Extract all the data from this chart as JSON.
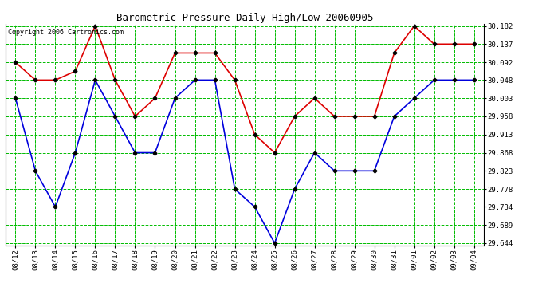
{
  "title": "Barometric Pressure Daily High/Low 20060905",
  "copyright": "Copyright 2006 Cartronics.com",
  "background_color": "#ffffff",
  "plot_background": "#ffffff",
  "grid_color": "#00bb00",
  "dates": [
    "08/12",
    "08/13",
    "08/14",
    "08/15",
    "08/16",
    "08/17",
    "08/18",
    "08/19",
    "08/20",
    "08/21",
    "08/22",
    "08/23",
    "08/24",
    "08/25",
    "08/26",
    "08/27",
    "08/28",
    "08/29",
    "08/30",
    "08/31",
    "09/01",
    "09/02",
    "09/03",
    "09/04"
  ],
  "high_values": [
    30.092,
    30.048,
    30.048,
    30.07,
    30.182,
    30.048,
    29.958,
    30.003,
    30.115,
    30.115,
    30.115,
    30.048,
    29.913,
    29.868,
    29.958,
    30.003,
    29.958,
    29.958,
    29.958,
    30.115,
    30.182,
    30.137,
    30.137,
    30.137
  ],
  "low_values": [
    30.003,
    29.823,
    29.734,
    29.868,
    30.048,
    29.958,
    29.868,
    29.868,
    30.003,
    30.048,
    30.048,
    29.778,
    29.734,
    29.644,
    29.778,
    29.868,
    29.823,
    29.823,
    29.823,
    29.958,
    30.003,
    30.048,
    30.048,
    30.048
  ],
  "high_color": "#dd0000",
  "low_color": "#0000dd",
  "marker_color": "#000000",
  "ylim_min": 29.639,
  "ylim_max": 30.187,
  "ytick_values": [
    29.644,
    29.689,
    29.734,
    29.778,
    29.823,
    29.868,
    29.913,
    29.958,
    30.003,
    30.048,
    30.092,
    30.137,
    30.182
  ],
  "linewidth": 1.2,
  "markersize": 2.5,
  "title_fontsize": 9,
  "tick_fontsize": 6.5,
  "copyright_fontsize": 6
}
